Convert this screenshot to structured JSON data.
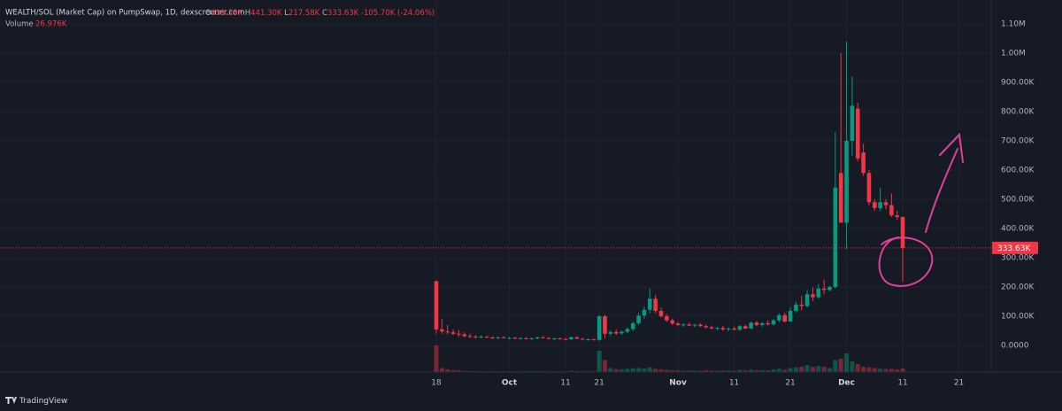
{
  "header": {
    "symbol": "WEALTH/SOL (Market Cap) on PumpSwap, 1D, dexscreener.com",
    "ohlc": [
      {
        "key": "O",
        "value": "439.33K"
      },
      {
        "key": "H",
        "value": "441.30K"
      },
      {
        "key": "L",
        "value": "217.58K"
      },
      {
        "key": "C",
        "value": "333.63K"
      }
    ],
    "change": "-105.70K (-24.06%)",
    "volume_label": "Volume",
    "volume_value": "26.976K"
  },
  "brand": "TradingView",
  "chart_data": {
    "type": "candlestick",
    "up_color": "#089981",
    "down_color": "#f23645",
    "grid": true,
    "categories": [
      "18",
      null,
      null,
      null,
      null,
      null,
      null,
      null,
      null,
      null,
      null,
      null,
      null,
      "Oct",
      null,
      null,
      null,
      null,
      null,
      null,
      null,
      null,
      null,
      "11",
      null,
      null,
      null,
      null,
      null,
      "21",
      null,
      null,
      null,
      null,
      null,
      null,
      null,
      null,
      null,
      null,
      null,
      null,
      null,
      "Nov",
      null,
      null,
      null,
      null,
      null,
      null,
      null,
      null,
      null,
      "11",
      null,
      null,
      null,
      null,
      null,
      null,
      null,
      null,
      null,
      "21",
      null,
      null,
      null,
      null,
      null,
      null,
      null,
      null,
      null,
      "Dec",
      null,
      null,
      null,
      null,
      null,
      null,
      null,
      null,
      null,
      "11",
      null,
      null,
      null,
      null,
      null,
      null,
      null,
      null,
      null,
      "21",
      null
    ],
    "open": [
      220000,
      55000,
      48000,
      45000,
      40000,
      38000,
      32000,
      30000,
      28000,
      30000,
      27000,
      26000,
      28000,
      25000,
      26000,
      24000,
      25000,
      23000,
      24000,
      28000,
      25000,
      22000,
      24000,
      22000,
      21000,
      28000,
      23000,
      20000,
      21000,
      19000,
      100000,
      40000,
      46000,
      41000,
      47000,
      56000,
      76000,
      102000,
      122000,
      160000,
      118000,
      100000,
      86000,
      75000,
      70000,
      72000,
      68000,
      71000,
      66000,
      62000,
      58000,
      60000,
      55000,
      58000,
      54000,
      66000,
      58000,
      78000,
      70000,
      76000,
      72000,
      86000,
      104000,
      82000,
      118000,
      140000,
      135000,
      175000,
      165000,
      195000,
      190000,
      200000,
      590000,
      420000,
      700000,
      810000,
      660000,
      590000,
      490000,
      470000,
      490000,
      480000,
      445000,
      439330,
      null,
      null,
      null,
      null,
      null,
      null,
      null,
      null,
      null,
      null,
      null
    ],
    "high": [
      222000,
      90000,
      70000,
      55000,
      52000,
      45000,
      40000,
      36000,
      34000,
      33000,
      31000,
      30000,
      32000,
      29000,
      30000,
      28000,
      28000,
      27000,
      30000,
      32000,
      28000,
      26000,
      27000,
      26000,
      30000,
      31000,
      26000,
      24000,
      23000,
      105000,
      105000,
      52000,
      55000,
      52000,
      62000,
      82000,
      112000,
      132000,
      195000,
      172000,
      130000,
      108000,
      92000,
      80000,
      76000,
      78000,
      74000,
      76000,
      72000,
      68000,
      64000,
      66000,
      62000,
      64000,
      70000,
      72000,
      82000,
      84000,
      80000,
      86000,
      90000,
      110000,
      112000,
      130000,
      150000,
      170000,
      190000,
      200000,
      210000,
      225000,
      205000,
      730000,
      1000000,
      1040000,
      920000,
      830000,
      690000,
      600000,
      500000,
      540000,
      500000,
      520000,
      460000,
      441300,
      null,
      null,
      null,
      null,
      null,
      null,
      null,
      null,
      null,
      null,
      null
    ],
    "low": [
      40000,
      40000,
      38000,
      35000,
      30000,
      28000,
      26000,
      25000,
      24000,
      25000,
      23000,
      22000,
      24000,
      21000,
      22000,
      20000,
      21000,
      20000,
      21000,
      24000,
      21000,
      19000,
      20000,
      19000,
      19000,
      22000,
      19000,
      17000,
      17000,
      15000,
      25000,
      32000,
      36000,
      36000,
      42000,
      50000,
      70000,
      92000,
      110000,
      110000,
      95000,
      80000,
      70000,
      66000,
      64000,
      66000,
      62000,
      64000,
      58000,
      55000,
      52000,
      50000,
      48000,
      52000,
      50000,
      56000,
      56000,
      66000,
      64000,
      68000,
      68000,
      80000,
      78000,
      80000,
      112000,
      120000,
      130000,
      150000,
      160000,
      175000,
      185000,
      195000,
      420000,
      330000,
      650000,
      630000,
      580000,
      480000,
      460000,
      460000,
      465000,
      440000,
      430000,
      217580,
      null,
      null,
      null,
      null,
      null,
      null,
      null,
      null,
      null,
      null,
      null
    ],
    "close": [
      55000,
      48000,
      45000,
      40000,
      38000,
      32000,
      30000,
      28000,
      30000,
      27000,
      26000,
      28000,
      25000,
      26000,
      24000,
      25000,
      23000,
      24000,
      28000,
      25000,
      22000,
      24000,
      22000,
      21000,
      28000,
      23000,
      20000,
      21000,
      19000,
      100000,
      40000,
      46000,
      41000,
      47000,
      56000,
      76000,
      102000,
      122000,
      160000,
      118000,
      100000,
      86000,
      75000,
      70000,
      72000,
      68000,
      71000,
      66000,
      62000,
      58000,
      60000,
      55000,
      58000,
      54000,
      66000,
      58000,
      78000,
      70000,
      76000,
      72000,
      86000,
      104000,
      82000,
      118000,
      140000,
      135000,
      175000,
      165000,
      195000,
      190000,
      200000,
      540000,
      420000,
      700000,
      820000,
      640000,
      590000,
      490000,
      470000,
      490000,
      480000,
      445000,
      439330,
      333630,
      null,
      null,
      null,
      null,
      null,
      null,
      null,
      null,
      null,
      null,
      null
    ],
    "volume": [
      200000,
      30000,
      20000,
      15000,
      12000,
      8000,
      7000,
      6000,
      6000,
      5000,
      6000,
      5000,
      7000,
      5000,
      6000,
      5000,
      5000,
      6000,
      8000,
      6000,
      5000,
      6000,
      5000,
      5000,
      9000,
      7000,
      5000,
      5000,
      5000,
      160000,
      90000,
      30000,
      22000,
      20000,
      25000,
      28000,
      30000,
      26000,
      35000,
      24000,
      20000,
      16000,
      14000,
      12000,
      10000,
      11000,
      10000,
      9000,
      12000,
      10000,
      9000,
      10000,
      11000,
      9000,
      15000,
      12000,
      18000,
      12000,
      14000,
      12000,
      20000,
      25000,
      18000,
      30000,
      35000,
      40000,
      50000,
      38000,
      45000,
      40000,
      30000,
      90000,
      100000,
      140000,
      80000,
      60000,
      40000,
      35000,
      30000,
      25000,
      22000,
      24000,
      20000,
      26976,
      null,
      null,
      null,
      null,
      null,
      null,
      null,
      null,
      null,
      null,
      null
    ],
    "ylim": [
      -90900,
      1181800
    ],
    "yticks": [
      {
        "value": 0,
        "label": "0.0000"
      },
      {
        "value": 100000,
        "label": "100.00K"
      },
      {
        "value": 200000,
        "label": "200.00K"
      },
      {
        "value": 300000,
        "label": "300.00K"
      },
      {
        "value": 400000,
        "label": "400.00K"
      },
      {
        "value": 500000,
        "label": "500.00K"
      },
      {
        "value": 600000,
        "label": "600.00K"
      },
      {
        "value": 700000,
        "label": "700.00K"
      },
      {
        "value": 800000,
        "label": "800.00K"
      },
      {
        "value": 900000,
        "label": "900.00K"
      },
      {
        "value": 1000000,
        "label": "1.00M"
      },
      {
        "value": 1100000,
        "label": "1.10M"
      }
    ],
    "last_price": {
      "value": 333630,
      "label": "333.63K"
    }
  }
}
